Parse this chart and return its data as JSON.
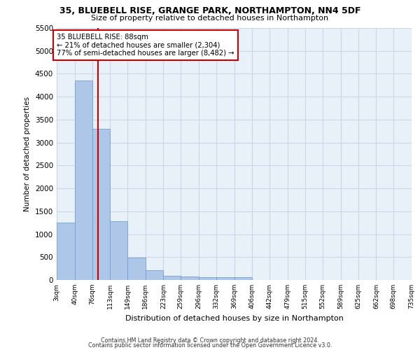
{
  "title_line1": "35, BLUEBELL RISE, GRANGE PARK, NORTHAMPTON, NN4 5DF",
  "title_line2": "Size of property relative to detached houses in Northampton",
  "xlabel": "Distribution of detached houses by size in Northampton",
  "ylabel": "Number of detached properties",
  "bin_edges": [
    3,
    40,
    76,
    113,
    149,
    186,
    223,
    259,
    296,
    332,
    369,
    406,
    442,
    479,
    515,
    552,
    589,
    625,
    662,
    698,
    735
  ],
  "bar_heights": [
    1250,
    4350,
    3300,
    1280,
    490,
    220,
    90,
    75,
    55,
    55,
    55,
    0,
    0,
    0,
    0,
    0,
    0,
    0,
    0,
    0
  ],
  "bar_color": "#aec6e8",
  "bar_edge_color": "#6699cc",
  "grid_color": "#c8d8e8",
  "background_color": "#e8f0f8",
  "red_line_x": 88,
  "annotation_title": "35 BLUEBELL RISE: 88sqm",
  "annotation_line2": "← 21% of detached houses are smaller (2,304)",
  "annotation_line3": "77% of semi-detached houses are larger (8,482) →",
  "annotation_box_color": "#ffffff",
  "annotation_box_edge": "#cc0000",
  "red_line_color": "#cc0000",
  "ylim": [
    0,
    5500
  ],
  "yticks": [
    0,
    500,
    1000,
    1500,
    2000,
    2500,
    3000,
    3500,
    4000,
    4500,
    5000,
    5500
  ],
  "footnote_line1": "Contains HM Land Registry data © Crown copyright and database right 2024.",
  "footnote_line2": "Contains public sector information licensed under the Open Government Licence v3.0.",
  "tick_labels": [
    "3sqm",
    "40sqm",
    "76sqm",
    "113sqm",
    "149sqm",
    "186sqm",
    "223sqm",
    "259sqm",
    "296sqm",
    "332sqm",
    "369sqm",
    "406sqm",
    "442sqm",
    "479sqm",
    "515sqm",
    "552sqm",
    "589sqm",
    "625sqm",
    "662sqm",
    "698sqm",
    "735sqm"
  ]
}
